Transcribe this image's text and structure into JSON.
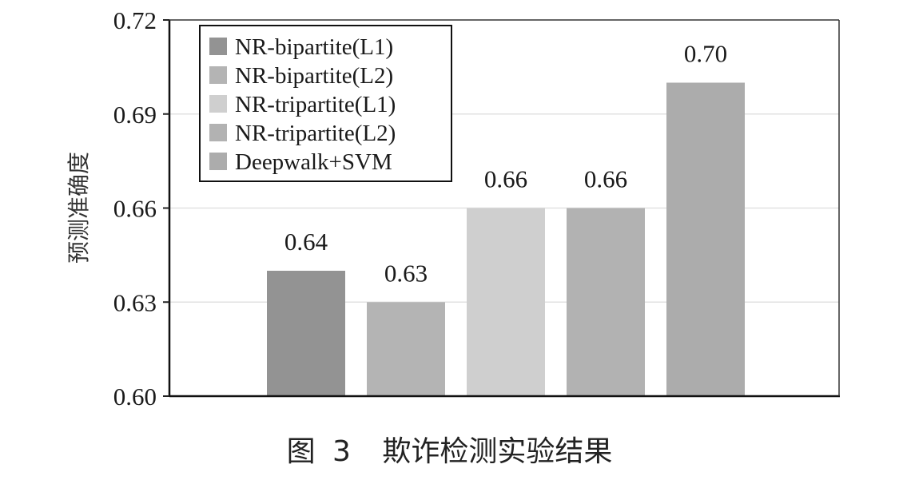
{
  "chart_data": {
    "type": "bar",
    "ylabel": "预测准确度",
    "ylim": [
      0.6,
      0.72
    ],
    "yticks": [
      "0.60",
      "0.63",
      "0.66",
      "0.69",
      "0.72"
    ],
    "grid": true,
    "legend_position": "top-left",
    "series": [
      {
        "name": "NR-bipartite(L1)",
        "value": 0.64,
        "label": "0.64",
        "color": "#939393"
      },
      {
        "name": "NR-bipartite(L2)",
        "value": 0.63,
        "label": "0.63",
        "color": "#b4b4b4"
      },
      {
        "name": "NR-tripartite(L1)",
        "value": 0.66,
        "label": "0.66",
        "color": "#cfcfcf"
      },
      {
        "name": "NR-tripartite(L2)",
        "value": 0.66,
        "label": "0.66",
        "color": "#b2b2b2"
      },
      {
        "name": "Deepwalk+SVM",
        "value": 0.7,
        "label": "0.70",
        "color": "#acacac"
      }
    ]
  },
  "caption": {
    "figure": "图",
    "number": "3",
    "title": "欺诈检测实验结果"
  }
}
